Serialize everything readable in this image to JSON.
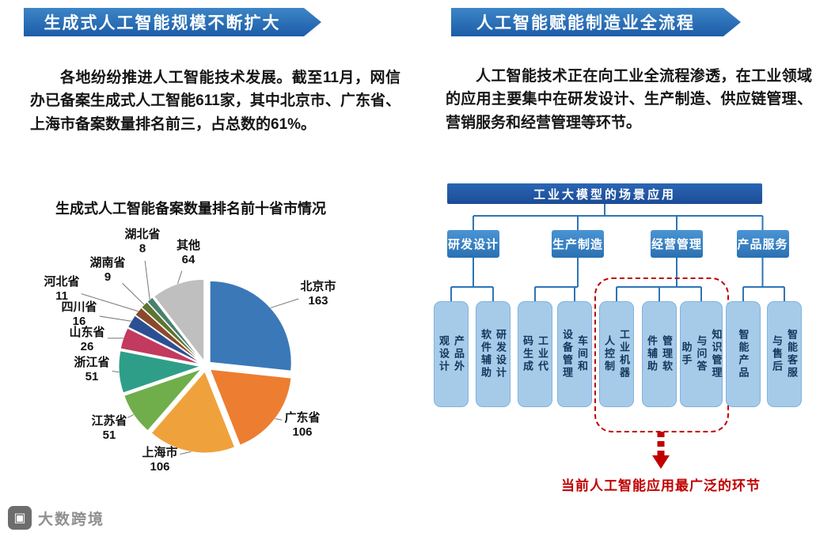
{
  "left_section": {
    "banner": "生成式人工智能规模不断扩大",
    "paragraph": "各地纷纷推进人工智能技术发展。截至11月，网信办已备案生成式人工智能611家，其中北京市、广东省、上海市备案数量排名前三，占总数的61%。",
    "chart_title": "生成式人工智能备案数量排名前十省市情况"
  },
  "chart_data": {
    "type": "pie",
    "title": "生成式人工智能备案数量排名前十省市情况",
    "total": 611,
    "start_angle_deg": 0,
    "direction": "clockwise",
    "legend_position": "outside-labels",
    "slices": [
      {
        "label": "北京市",
        "value": 163,
        "color": "#3a78b8"
      },
      {
        "label": "广东省",
        "value": 106,
        "color": "#ed7d31"
      },
      {
        "label": "上海市",
        "value": 106,
        "color": "#efa23c"
      },
      {
        "label": "江苏省",
        "value": 51,
        "color": "#6fae4a"
      },
      {
        "label": "浙江省",
        "value": 51,
        "color": "#2f9e88"
      },
      {
        "label": "山东省",
        "value": 26,
        "color": "#c23a5e"
      },
      {
        "label": "四川省",
        "value": 16,
        "color": "#2c4f93"
      },
      {
        "label": "河北省",
        "value": 11,
        "color": "#8a4a2a"
      },
      {
        "label": "湖南省",
        "value": 9,
        "color": "#5d7431"
      },
      {
        "label": "湖北省",
        "value": 8,
        "color": "#49806e"
      },
      {
        "label": "其他",
        "value": 64,
        "color": "#bfbfbf"
      }
    ]
  },
  "right_section": {
    "banner": "人工智能赋能制造业全流程",
    "paragraph": "人工智能技术正在向工业全流程渗透，在工业领域的应用主要集中在研发设计、生产制造、供应链管理、营销服务和经营管理等环节。",
    "diagram": {
      "root": "工业大模型的场景应用",
      "groups": [
        {
          "label": "研发设计",
          "children": [
            "产品外观设计",
            "研发设计软件辅助"
          ]
        },
        {
          "label": "生产制造",
          "children": [
            "工业代码生成",
            "车间和设备管理"
          ]
        },
        {
          "label": "经营管理",
          "children": [
            "工业机器人控制",
            "管理软件辅助",
            "知识管理与问答助手"
          ]
        },
        {
          "label": "产品服务",
          "children": [
            "智能产品",
            "智能客服与售后"
          ]
        }
      ],
      "highlight": {
        "group_index": 2,
        "note": "当前人工智能应用最广泛的环节",
        "color": "#c00000"
      }
    }
  },
  "watermark": {
    "brand": "大数跨境"
  }
}
